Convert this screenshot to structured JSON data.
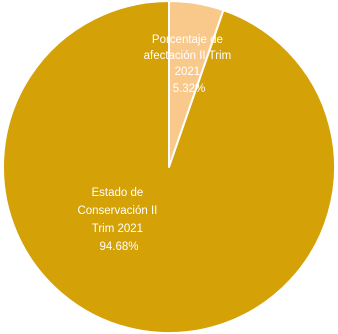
{
  "chart_data": {
    "type": "pie",
    "slices": [
      {
        "label_lines": [
          "Porcentaje de",
          "afectación II Trim",
          "2021"
        ],
        "value_label": "5.32%",
        "value": 5.32,
        "color": "#f9c98c"
      },
      {
        "label_lines": [
          "Estado de",
          "Conservación II",
          "Trim 2021"
        ],
        "value_label": "94.68%",
        "value": 94.68,
        "color": "#d4a106"
      }
    ],
    "legend": "none",
    "slice_border_color": "#ffffff"
  }
}
